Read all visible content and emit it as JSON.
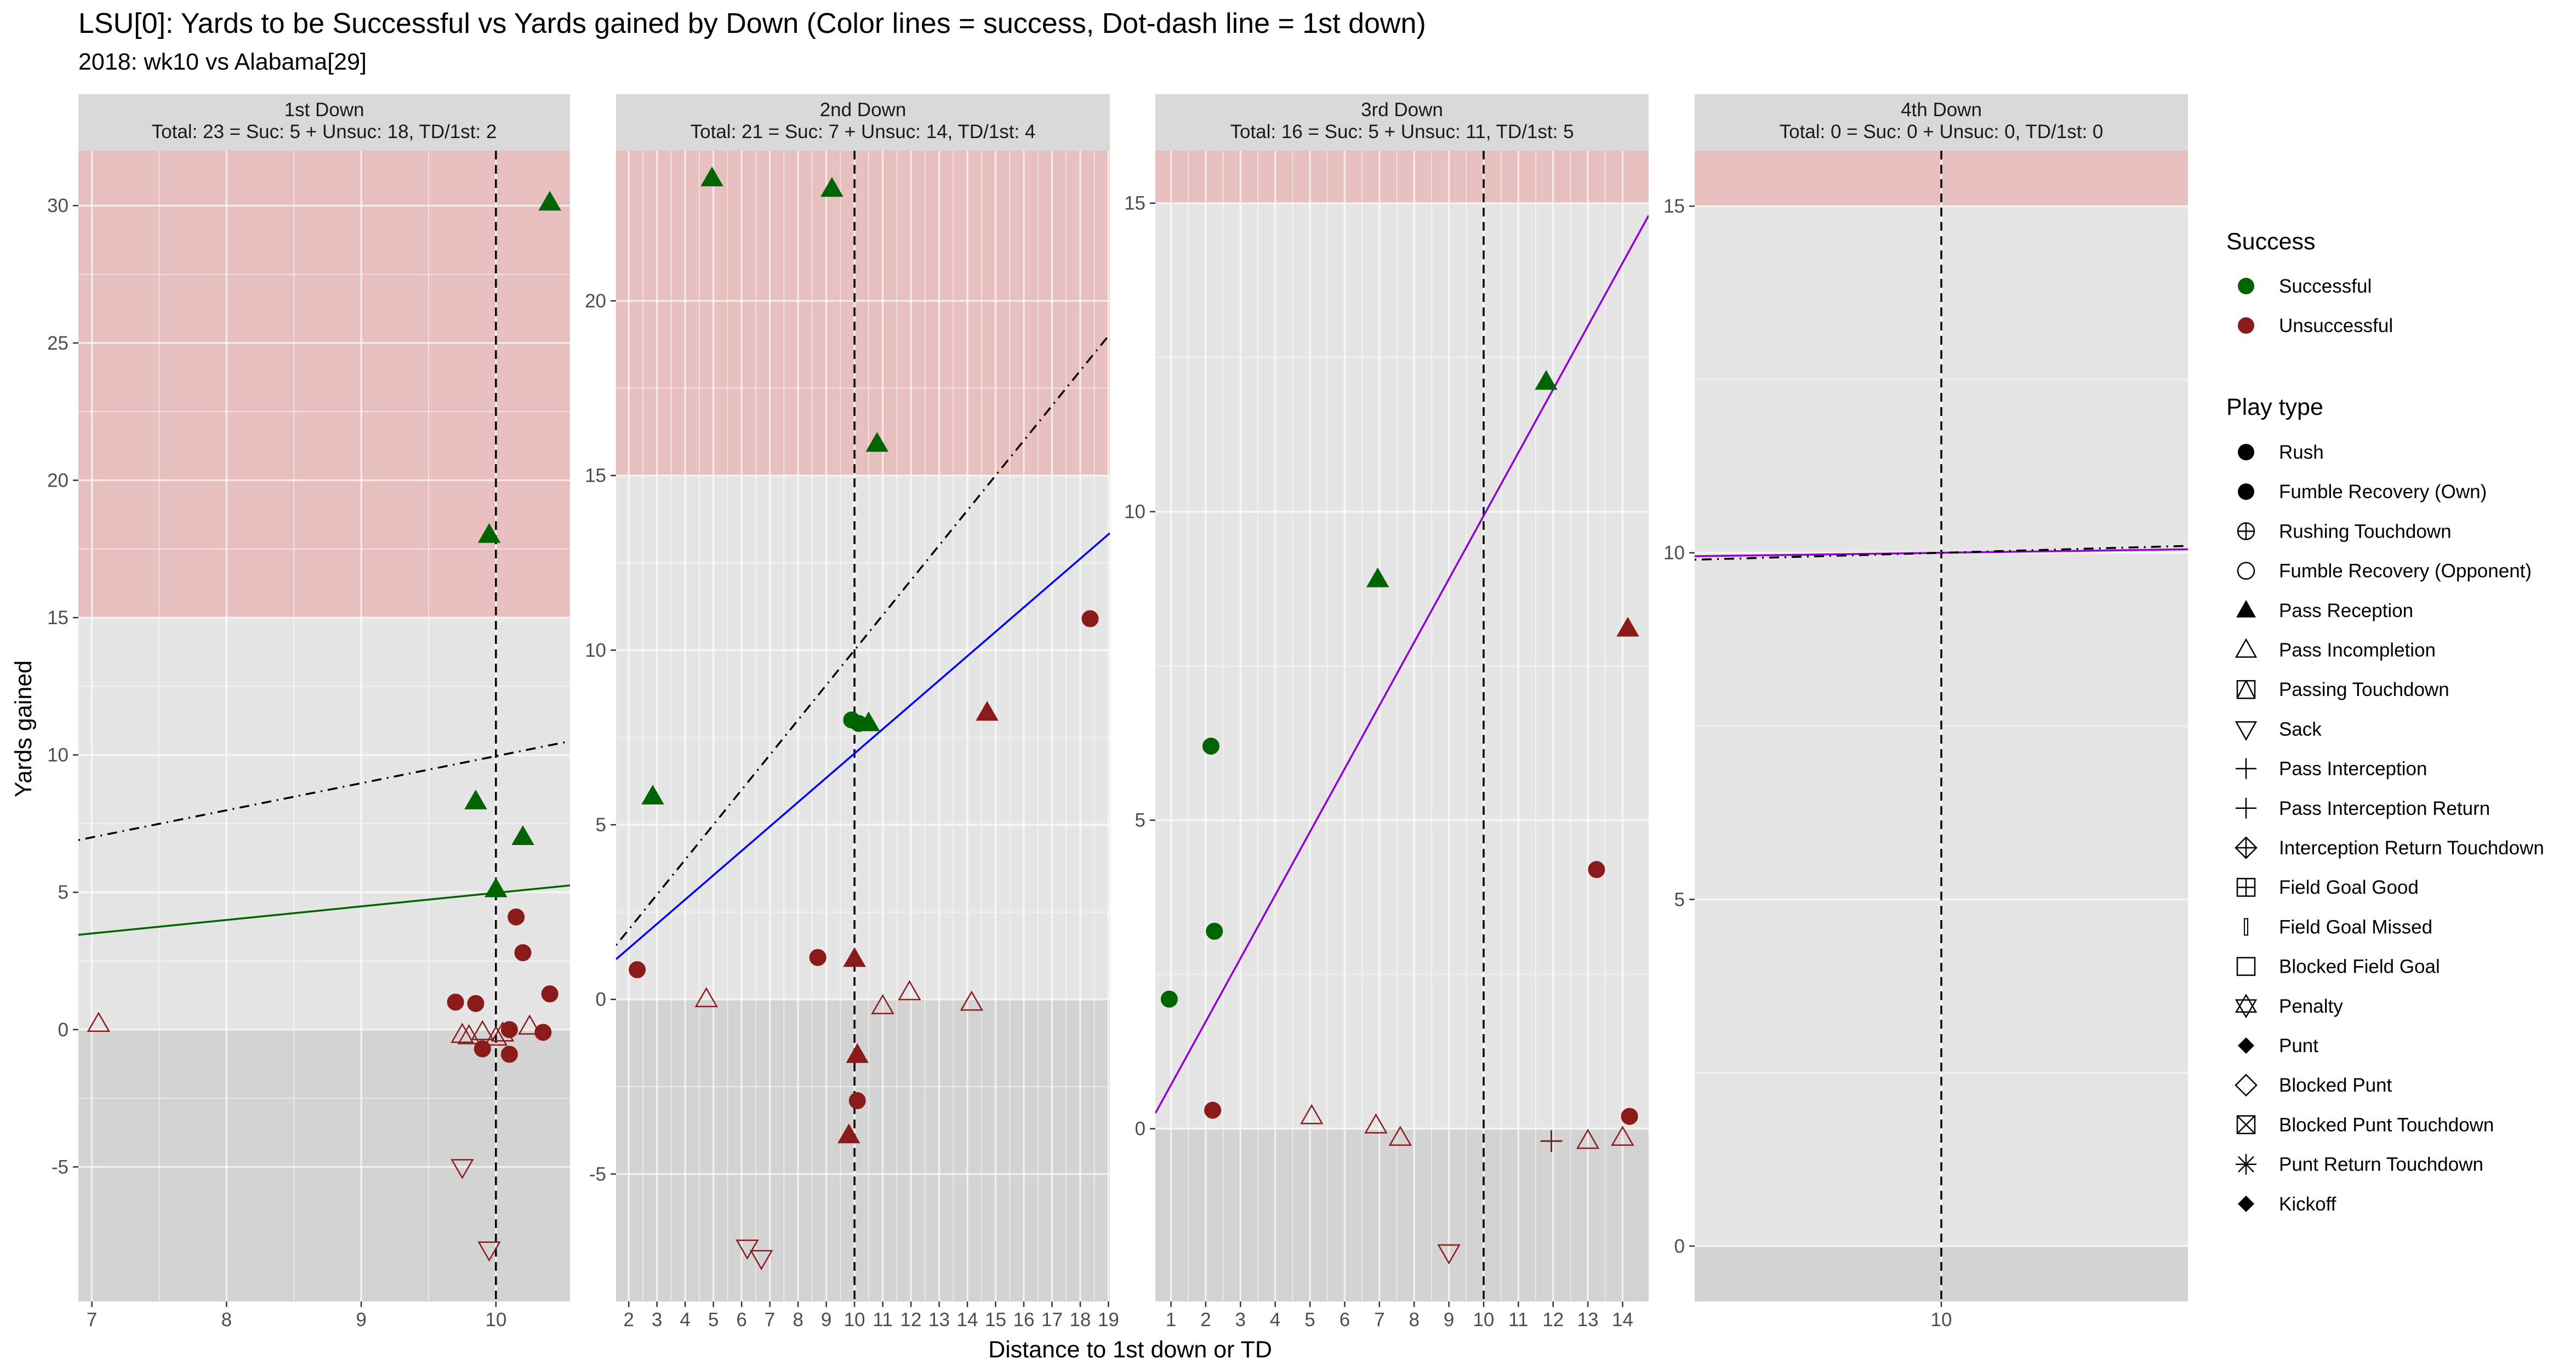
{
  "title": "LSU[0]: Yards to be Successful vs Yards gained by Down  (Color lines = success, Dot-dash line = 1st down)",
  "subtitle": "2018: wk10 vs Alabama[29]",
  "colors": {
    "successful": "#006400",
    "unsuccessful": "#8B1A1A",
    "panel_bg": "#E5E5E5",
    "grid": "#FFFFFF",
    "strip_bg": "#D9D9D9",
    "pink_band": "#E8BFBF",
    "negative_band": "#D3D3D3",
    "third_down_line": "#9400D3",
    "second_down_line": "#0000FF"
  },
  "chart_data": {
    "type": "scatter",
    "xlabel": "Distance to 1st down or TD",
    "ylabel": "Yards gained",
    "legend": {
      "placement": "right",
      "success_title": "Success",
      "success_items": [
        {
          "label": "Successful",
          "color": "#006400"
        },
        {
          "label": "Unsuccessful",
          "color": "#8B1A1A"
        }
      ],
      "playtype_title": "Play type",
      "playtype_items": [
        {
          "label": "Rush",
          "icon": "filled-circle-icon"
        },
        {
          "label": "Fumble Recovery (Own)",
          "icon": "filled-circle-icon"
        },
        {
          "label": "Rushing Touchdown",
          "icon": "circle-plus-icon"
        },
        {
          "label": "Fumble Recovery (Opponent)",
          "icon": "open-circle-icon"
        },
        {
          "label": "Pass Reception",
          "icon": "filled-triangle-icon"
        },
        {
          "label": "Pass Incompletion",
          "icon": "open-triangle-icon"
        },
        {
          "label": "Passing Touchdown",
          "icon": "triangle-square-icon"
        },
        {
          "label": "Sack",
          "icon": "open-down-triangle-icon"
        },
        {
          "label": "Pass Interception",
          "icon": "plus-icon"
        },
        {
          "label": "Pass Interception Return",
          "icon": "plus-icon"
        },
        {
          "label": "Interception Return Touchdown",
          "icon": "diamond-plus-icon"
        },
        {
          "label": "Field Goal Good",
          "icon": "square-plus-icon"
        },
        {
          "label": "Field Goal Missed",
          "icon": "thin-bar-icon"
        },
        {
          "label": "Blocked Field Goal",
          "icon": "open-square-icon"
        },
        {
          "label": "Penalty",
          "icon": "star-of-david-icon"
        },
        {
          "label": "Punt",
          "icon": "filled-diamond-icon"
        },
        {
          "label": "Blocked Punt",
          "icon": "open-diamond-icon"
        },
        {
          "label": "Blocked Punt Touchdown",
          "icon": "square-cross-icon"
        },
        {
          "label": "Punt Return Touchdown",
          "icon": "asterisk-icon"
        },
        {
          "label": "Kickoff",
          "icon": "filled-diamond-icon"
        }
      ]
    },
    "panels": [
      {
        "strip": "1st Down",
        "summary": "Total: 23 = Suc: 5 + Unsuc: 18, TD/1st: 2",
        "xlim": [
          6.9,
          10.55
        ],
        "ylim": [
          -9.9,
          32
        ],
        "x_ticks": [
          7,
          8,
          9,
          10
        ],
        "x_tick_labels": [
          "7",
          "8",
          "9",
          "10"
        ],
        "y_ticks": [
          -5,
          0,
          5,
          10,
          15,
          20,
          25,
          30
        ],
        "y_tick_labels": [
          "-5",
          "0",
          "5",
          "10",
          "15",
          "20",
          "25",
          "30"
        ],
        "show_y_labels": true,
        "pink_band": [
          15,
          32
        ],
        "vline_x": 10,
        "lines": [
          {
            "style": "dotdash",
            "color": "#000000",
            "x": [
              6.9,
              10.55
            ],
            "y": [
              6.9,
              10.5
            ]
          },
          {
            "style": "solid",
            "color": "#006400",
            "x": [
              6.9,
              10.55
            ],
            "y": [
              3.45,
              5.25
            ]
          }
        ],
        "points": [
          {
            "x": 10.4,
            "y": 30.1,
            "shape": "filled-triangle",
            "success": true
          },
          {
            "x": 9.95,
            "y": 18.0,
            "shape": "filled-triangle",
            "success": true
          },
          {
            "x": 9.85,
            "y": 8.3,
            "shape": "filled-triangle",
            "success": true
          },
          {
            "x": 10.2,
            "y": 7.0,
            "shape": "filled-triangle",
            "success": true
          },
          {
            "x": 10.0,
            "y": 5.1,
            "shape": "filled-triangle",
            "success": true
          },
          {
            "x": 10.15,
            "y": 4.1,
            "shape": "circle",
            "success": false
          },
          {
            "x": 10.2,
            "y": 2.8,
            "shape": "circle",
            "success": false
          },
          {
            "x": 10.4,
            "y": 1.3,
            "shape": "circle",
            "success": false
          },
          {
            "x": 9.7,
            "y": 1.0,
            "shape": "circle",
            "success": false
          },
          {
            "x": 9.85,
            "y": 0.95,
            "shape": "circle",
            "success": false
          },
          {
            "x": 10.1,
            "y": 0.0,
            "shape": "circle",
            "success": false
          },
          {
            "x": 9.9,
            "y": -0.7,
            "shape": "circle",
            "success": false
          },
          {
            "x": 10.1,
            "y": -0.9,
            "shape": "circle",
            "success": false
          },
          {
            "x": 10.35,
            "y": -0.1,
            "shape": "circle",
            "success": false
          },
          {
            "x": 7.05,
            "y": 0.2,
            "shape": "open-triangle",
            "success": false
          },
          {
            "x": 9.75,
            "y": -0.2,
            "shape": "open-triangle",
            "success": false
          },
          {
            "x": 9.8,
            "y": -0.25,
            "shape": "open-triangle",
            "success": false
          },
          {
            "x": 9.9,
            "y": -0.1,
            "shape": "open-triangle",
            "success": false
          },
          {
            "x": 10.05,
            "y": -0.15,
            "shape": "open-triangle",
            "success": false
          },
          {
            "x": 10.0,
            "y": -0.3,
            "shape": "open-triangle",
            "success": false
          },
          {
            "x": 10.25,
            "y": 0.1,
            "shape": "open-triangle",
            "success": false
          },
          {
            "x": 9.75,
            "y": -5.0,
            "shape": "open-down-triangle",
            "success": false
          },
          {
            "x": 9.95,
            "y": -8.0,
            "shape": "open-down-triangle",
            "success": false
          }
        ]
      },
      {
        "strip": "2nd Down",
        "summary": "Total: 21 = Suc: 7 + Unsuc: 14, TD/1st: 4",
        "xlim": [
          1.55,
          19.05
        ],
        "ylim": [
          -8.65,
          24.3
        ],
        "x_ticks": [
          2,
          3,
          4,
          5,
          6,
          7,
          8,
          9,
          10,
          11,
          12,
          13,
          14,
          15,
          16,
          17,
          18,
          19
        ],
        "x_tick_labels": [
          "2",
          "3",
          "4",
          "5",
          "6",
          "7",
          "8",
          "9",
          "10",
          "11",
          "12",
          "13",
          "14",
          "15",
          "16",
          "17",
          "18",
          "19"
        ],
        "y_ticks": [
          -5,
          0,
          5,
          10,
          15,
          20
        ],
        "y_tick_labels": [
          "-5",
          "0",
          "5",
          "10",
          "15",
          "20"
        ],
        "show_y_labels": true,
        "pink_band": [
          15,
          24.3
        ],
        "vline_x": 10,
        "lines": [
          {
            "style": "dotdash",
            "color": "#000000",
            "x": [
              1.55,
              19.05
            ],
            "y": [
              1.55,
              19.05
            ]
          },
          {
            "style": "solid",
            "color": "#0000FF",
            "x": [
              1.55,
              19.05
            ],
            "y": [
              1.15,
              13.35
            ]
          }
        ],
        "points": [
          {
            "x": 4.95,
            "y": 23.5,
            "shape": "filled-triangle",
            "success": true
          },
          {
            "x": 9.2,
            "y": 23.2,
            "shape": "filled-triangle",
            "success": true
          },
          {
            "x": 10.8,
            "y": 15.9,
            "shape": "filled-triangle",
            "success": true
          },
          {
            "x": 2.85,
            "y": 5.8,
            "shape": "filled-triangle",
            "success": true
          },
          {
            "x": 10.5,
            "y": 7.9,
            "shape": "filled-triangle",
            "success": true
          },
          {
            "x": 9.9,
            "y": 8.0,
            "shape": "circle",
            "success": true
          },
          {
            "x": 10.15,
            "y": 7.9,
            "shape": "circle",
            "success": true
          },
          {
            "x": 18.35,
            "y": 10.9,
            "shape": "circle",
            "success": false
          },
          {
            "x": 14.7,
            "y": 8.2,
            "shape": "filled-triangle",
            "success": false
          },
          {
            "x": 8.7,
            "y": 1.2,
            "shape": "circle",
            "success": false
          },
          {
            "x": 10.0,
            "y": 1.15,
            "shape": "filled-triangle",
            "success": false
          },
          {
            "x": 2.3,
            "y": 0.85,
            "shape": "circle",
            "success": false
          },
          {
            "x": 10.1,
            "y": -1.6,
            "shape": "filled-triangle",
            "success": false
          },
          {
            "x": 10.1,
            "y": -2.9,
            "shape": "circle",
            "success": false
          },
          {
            "x": 9.8,
            "y": -3.9,
            "shape": "filled-triangle",
            "success": false
          },
          {
            "x": 4.75,
            "y": 0.0,
            "shape": "open-triangle",
            "success": false
          },
          {
            "x": 11.0,
            "y": -0.2,
            "shape": "open-triangle",
            "success": false
          },
          {
            "x": 11.95,
            "y": 0.2,
            "shape": "open-triangle",
            "success": false
          },
          {
            "x": 14.15,
            "y": -0.1,
            "shape": "open-triangle",
            "success": false
          },
          {
            "x": 6.2,
            "y": -7.1,
            "shape": "open-down-triangle",
            "success": false
          },
          {
            "x": 6.7,
            "y": -7.4,
            "shape": "open-down-triangle",
            "success": false
          }
        ]
      },
      {
        "strip": "3rd Down",
        "summary": "Total: 16 = Suc: 5 + Unsuc: 11, TD/1st: 5",
        "xlim": [
          0.55,
          14.75
        ],
        "ylim": [
          -2.8,
          15.85
        ],
        "x_ticks": [
          1,
          2,
          3,
          4,
          5,
          6,
          7,
          8,
          9,
          10,
          11,
          12,
          13,
          14
        ],
        "x_tick_labels": [
          "1",
          "2",
          "3",
          "4",
          "5",
          "6",
          "7",
          "8",
          "9",
          "10",
          "11",
          "12",
          "13",
          "14"
        ],
        "y_ticks": [
          0,
          5,
          10,
          15
        ],
        "y_tick_labels": [
          "0",
          "5",
          "10",
          "15"
        ],
        "show_y_labels": true,
        "pink_band": [
          15,
          15.85
        ],
        "vline_x": 10,
        "lines": [
          {
            "style": "solid",
            "color": "#9400D3",
            "x": [
              0.55,
              14.75
            ],
            "y": [
              0.25,
              14.8
            ]
          }
        ],
        "points": [
          {
            "x": 11.8,
            "y": 12.1,
            "shape": "filled-triangle",
            "success": true
          },
          {
            "x": 6.95,
            "y": 8.9,
            "shape": "filled-triangle",
            "success": true
          },
          {
            "x": 2.15,
            "y": 6.2,
            "shape": "circle",
            "success": true
          },
          {
            "x": 2.25,
            "y": 3.2,
            "shape": "circle",
            "success": true
          },
          {
            "x": 0.95,
            "y": 2.1,
            "shape": "circle",
            "success": true
          },
          {
            "x": 14.15,
            "y": 8.1,
            "shape": "filled-triangle",
            "success": false
          },
          {
            "x": 13.25,
            "y": 4.2,
            "shape": "circle",
            "success": false
          },
          {
            "x": 2.2,
            "y": 0.3,
            "shape": "circle",
            "success": false
          },
          {
            "x": 14.2,
            "y": 0.2,
            "shape": "circle",
            "success": false
          },
          {
            "x": 5.05,
            "y": 0.2,
            "shape": "open-triangle",
            "success": false
          },
          {
            "x": 6.9,
            "y": 0.05,
            "shape": "open-triangle",
            "success": false
          },
          {
            "x": 7.6,
            "y": -0.15,
            "shape": "open-triangle",
            "success": false
          },
          {
            "x": 13.0,
            "y": -0.2,
            "shape": "open-triangle",
            "success": false
          },
          {
            "x": 14.0,
            "y": -0.15,
            "shape": "open-triangle",
            "success": false
          },
          {
            "x": 11.95,
            "y": -0.2,
            "shape": "plus",
            "success": false
          },
          {
            "x": 9.0,
            "y": -2.0,
            "shape": "open-down-triangle",
            "success": false
          }
        ]
      },
      {
        "strip": "4th Down",
        "summary": "Total: 0 = Suc: 0 + Unsuc: 0, TD/1st: 0",
        "xlim": [
          9.4,
          10.6
        ],
        "ylim": [
          -0.8,
          15.8
        ],
        "x_ticks": [
          10
        ],
        "x_tick_labels": [
          "10"
        ],
        "y_ticks": [
          0,
          5,
          10,
          15
        ],
        "y_tick_labels": [
          "0",
          "5",
          "10",
          "15"
        ],
        "show_y_labels": true,
        "pink_band": [
          15,
          15.8
        ],
        "vline_x": 10,
        "lines": [
          {
            "style": "solid",
            "color": "#9400D3",
            "x": [
              9.4,
              10.6
            ],
            "y": [
              9.95,
              10.05
            ]
          },
          {
            "style": "dotdash",
            "color": "#000000",
            "x": [
              9.4,
              10.6
            ],
            "y": [
              9.9,
              10.1
            ]
          }
        ],
        "points": []
      }
    ]
  }
}
